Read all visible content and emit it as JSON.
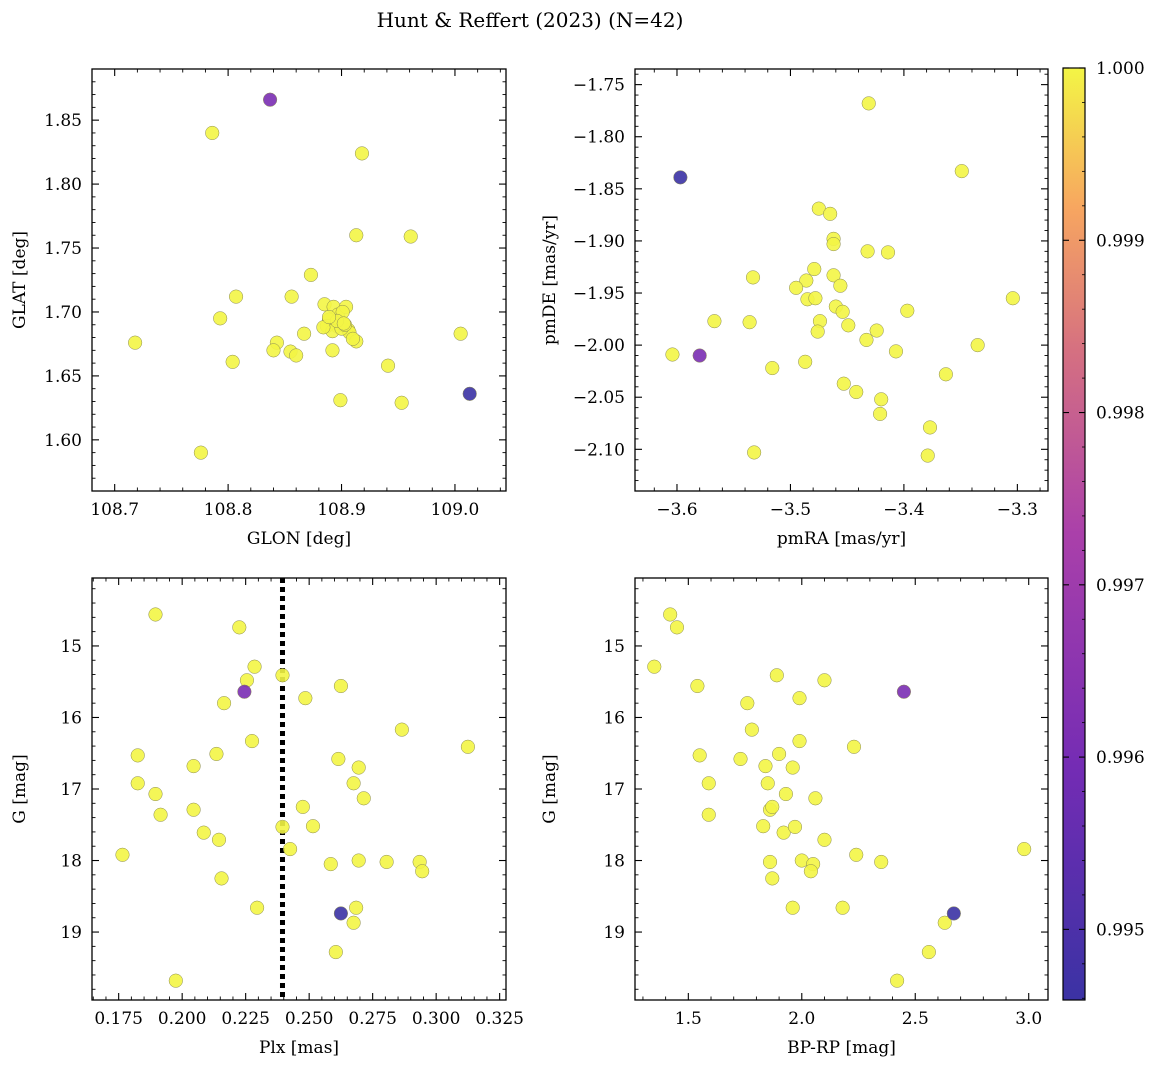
{
  "title": "Hunt & Reffert (2023) (N=42)",
  "colormap": {
    "name": "plasma",
    "min": 0.99459,
    "max": 1.0,
    "ticks": [
      0.995,
      0.996,
      0.997,
      0.998,
      0.999,
      1.0
    ],
    "tick_labels": [
      "0.995",
      "0.996",
      "0.997",
      "0.998",
      "0.999",
      "1.000"
    ]
  },
  "colors": {
    "low": "#3b32a4",
    "mid": "#8e39bb",
    "high": "#f3f545",
    "divider": "#000000"
  },
  "chart_data": [
    {
      "id": "glon-glat",
      "type": "scatter",
      "xlabel": "GLON [deg]",
      "ylabel": "GLAT [deg]",
      "xlim": [
        108.68,
        109.045
      ],
      "ylim": [
        1.56,
        1.89
      ],
      "xticks": [
        108.7,
        108.8,
        108.9,
        109.0
      ],
      "xtick_labels": [
        "108.7",
        "108.8",
        "108.9",
        "109.0"
      ],
      "yticks": [
        1.6,
        1.65,
        1.7,
        1.75,
        1.8,
        1.85
      ],
      "ytick_labels": [
        "1.60",
        "1.65",
        "1.70",
        "1.75",
        "1.80",
        "1.85"
      ],
      "x": [
        108.837,
        108.786,
        108.918,
        108.913,
        108.961,
        108.718,
        108.873,
        108.807,
        108.793,
        108.856,
        108.885,
        108.893,
        108.897,
        108.904,
        108.889,
        108.901,
        108.896,
        108.906,
        108.887,
        108.892,
        108.907,
        108.9,
        108.913,
        108.91,
        108.903,
        108.867,
        108.843,
        108.855,
        108.86,
        108.892,
        108.804,
        108.84,
        108.941,
        109.005,
        108.899,
        108.953,
        108.776,
        109.013,
        108.896,
        108.902,
        108.884,
        108.889
      ],
      "y": [
        1.866,
        1.84,
        1.824,
        1.76,
        1.759,
        1.676,
        1.729,
        1.712,
        1.695,
        1.712,
        1.706,
        1.704,
        1.698,
        1.704,
        1.694,
        1.7,
        1.689,
        1.686,
        1.689,
        1.685,
        1.684,
        1.687,
        1.677,
        1.679,
        1.69,
        1.683,
        1.676,
        1.669,
        1.666,
        1.67,
        1.661,
        1.67,
        1.658,
        1.683,
        1.631,
        1.629,
        1.59,
        1.636,
        1.693,
        1.691,
        1.688,
        1.696
      ],
      "c": [
        0.9961,
        1,
        1,
        1,
        1,
        1,
        1,
        1,
        1,
        1,
        1,
        1,
        1,
        1,
        1,
        1,
        1,
        1,
        1,
        1,
        1,
        1,
        1,
        1,
        1,
        1,
        1,
        1,
        1,
        1,
        1,
        1,
        1,
        1,
        1,
        1,
        1,
        0.99459,
        1,
        1,
        1,
        1
      ]
    },
    {
      "id": "pmra-pmde",
      "type": "scatter",
      "xlabel": "pmRA [mas/yr]",
      "ylabel": "pmDE [mas/yr]",
      "xlim": [
        -3.637,
        -3.273
      ],
      "ylim": [
        -2.14,
        -1.735
      ],
      "xticks": [
        -3.6,
        -3.5,
        -3.4,
        -3.3
      ],
      "xtick_labels": [
        "−3.6",
        "−3.5",
        "−3.4",
        "−3.3"
      ],
      "yticks": [
        -2.1,
        -2.05,
        -2.0,
        -1.95,
        -1.9,
        -1.85,
        -1.8,
        -1.75
      ],
      "ytick_labels": [
        "−2.10",
        "−2.05",
        "−2.00",
        "−1.95",
        "−1.90",
        "−1.85",
        "−1.80",
        "−1.75"
      ],
      "x": [
        -3.597,
        -3.58,
        -3.431,
        -3.349,
        -3.475,
        -3.465,
        -3.462,
        -3.462,
        -3.533,
        -3.432,
        -3.414,
        -3.479,
        -3.486,
        -3.462,
        -3.495,
        -3.485,
        -3.478,
        -3.456,
        -3.567,
        -3.536,
        -3.46,
        -3.454,
        -3.474,
        -3.449,
        -3.476,
        -3.424,
        -3.433,
        -3.304,
        -3.397,
        -3.335,
        -3.604,
        -3.407,
        -3.487,
        -3.516,
        -3.453,
        -3.442,
        -3.42,
        -3.363,
        -3.421,
        -3.377,
        -3.379,
        -3.532
      ],
      "y": [
        -1.839,
        -2.01,
        -1.768,
        -1.833,
        -1.869,
        -1.874,
        -1.898,
        -1.903,
        -1.935,
        -1.91,
        -1.911,
        -1.927,
        -1.938,
        -1.933,
        -1.945,
        -1.956,
        -1.955,
        -1.943,
        -1.977,
        -1.978,
        -1.963,
        -1.968,
        -1.977,
        -1.981,
        -1.987,
        -1.986,
        -1.995,
        -1.955,
        -1.967,
        -2.0,
        -2.009,
        -2.006,
        -2.016,
        -2.022,
        -2.037,
        -2.045,
        -2.052,
        -2.028,
        -2.066,
        -2.079,
        -2.106,
        -2.103
      ],
      "c": [
        0.99459,
        0.9961,
        1,
        1,
        1,
        1,
        1,
        1,
        1,
        1,
        1,
        1,
        1,
        1,
        1,
        1,
        1,
        1,
        1,
        1,
        1,
        1,
        1,
        1,
        1,
        1,
        1,
        1,
        1,
        1,
        1,
        1,
        1,
        1,
        1,
        1,
        1,
        1,
        1,
        1,
        1,
        1
      ]
    },
    {
      "id": "plx-g",
      "type": "scatter",
      "xlabel": "Plx [mas]",
      "ylabel": "G [mag]",
      "xlim": [
        0.1645,
        0.3275
      ],
      "ylim": [
        19.95,
        14.05
      ],
      "invert_y": true,
      "xticks": [
        0.175,
        0.2,
        0.225,
        0.25,
        0.275,
        0.3,
        0.325
      ],
      "xtick_labels": [
        "0.175",
        "0.200",
        "0.225",
        "0.250",
        "0.275",
        "0.300",
        "0.325"
      ],
      "yticks": [
        15,
        16,
        17,
        18,
        19
      ],
      "ytick_labels": [
        "15",
        "16",
        "17",
        "18",
        "19"
      ],
      "vline": 0.2395,
      "x": [
        0.1895,
        0.2225,
        0.2285,
        0.2255,
        0.2395,
        0.2485,
        0.2625,
        0.2165,
        0.2275,
        0.2135,
        0.1825,
        0.2045,
        0.2615,
        0.2695,
        0.1825,
        0.1895,
        0.2675,
        0.2475,
        0.2715,
        0.2045,
        0.1915,
        0.2515,
        0.2085,
        0.2145,
        0.2395,
        0.2425,
        0.1765,
        0.2585,
        0.2695,
        0.2805,
        0.2935,
        0.2945,
        0.2155,
        0.2295,
        0.2685,
        0.2675,
        0.2605,
        0.1975,
        0.2865,
        0.3125,
        0.2245,
        0.2625
      ],
      "y": [
        14.56,
        14.74,
        15.29,
        15.48,
        15.41,
        15.73,
        15.56,
        15.8,
        16.33,
        16.51,
        16.53,
        16.68,
        16.58,
        16.7,
        16.92,
        17.07,
        16.92,
        17.25,
        17.13,
        17.29,
        17.36,
        17.52,
        17.61,
        17.71,
        17.53,
        17.84,
        17.92,
        18.05,
        18.0,
        18.02,
        18.02,
        18.15,
        18.25,
        18.66,
        18.66,
        18.87,
        19.28,
        19.68,
        16.17,
        16.41,
        15.64,
        18.74
      ],
      "c": [
        1,
        1,
        1,
        1,
        1,
        1,
        1,
        1,
        1,
        1,
        1,
        1,
        1,
        1,
        1,
        1,
        1,
        1,
        1,
        1,
        1,
        1,
        1,
        1,
        1,
        1,
        1,
        1,
        1,
        1,
        1,
        1,
        1,
        1,
        1,
        1,
        1,
        1,
        1,
        1,
        0.9961,
        0.99459
      ]
    },
    {
      "id": "bprp-g",
      "type": "scatter",
      "xlabel": "BP-RP [mag]",
      "ylabel": "G [mag]",
      "xlim": [
        1.265,
        3.085
      ],
      "ylim": [
        19.95,
        14.05
      ],
      "invert_y": true,
      "xticks": [
        1.5,
        2.0,
        2.5,
        3.0
      ],
      "xtick_labels": [
        "1.5",
        "2.0",
        "2.5",
        "3.0"
      ],
      "yticks": [
        15,
        16,
        17,
        18,
        19
      ],
      "ytick_labels": [
        "15",
        "16",
        "17",
        "18",
        "19"
      ],
      "x": [
        1.42,
        1.45,
        1.35,
        1.54,
        1.89,
        2.1,
        1.76,
        1.78,
        1.99,
        1.55,
        1.9,
        1.73,
        1.96,
        1.59,
        1.85,
        1.86,
        1.87,
        1.93,
        2.06,
        1.59,
        1.83,
        2.23,
        1.92,
        2.1,
        1.84,
        1.86,
        2.24,
        2.35,
        2.0,
        2.05,
        2.04,
        1.87,
        1.96,
        2.18,
        2.63,
        2.56,
        2.42,
        2.98,
        1.99,
        1.97,
        2.45,
        2.67
      ],
      "y": [
        14.56,
        14.74,
        15.29,
        15.56,
        15.41,
        15.48,
        15.8,
        16.17,
        15.73,
        16.53,
        16.51,
        16.58,
        16.7,
        16.92,
        16.92,
        17.29,
        17.25,
        17.07,
        17.13,
        17.36,
        17.52,
        16.41,
        17.61,
        17.71,
        16.68,
        18.02,
        17.92,
        18.02,
        18.0,
        18.05,
        18.15,
        18.25,
        18.66,
        18.66,
        18.87,
        19.28,
        19.68,
        17.84,
        16.33,
        17.53,
        15.64,
        18.74
      ],
      "c": [
        1,
        1,
        1,
        1,
        1,
        1,
        1,
        1,
        1,
        1,
        1,
        1,
        1,
        1,
        1,
        1,
        1,
        1,
        1,
        1,
        1,
        1,
        1,
        1,
        1,
        1,
        1,
        1,
        1,
        1,
        1,
        1,
        1,
        1,
        1,
        1,
        1,
        1,
        1,
        1,
        0.9961,
        0.99459
      ]
    }
  ]
}
